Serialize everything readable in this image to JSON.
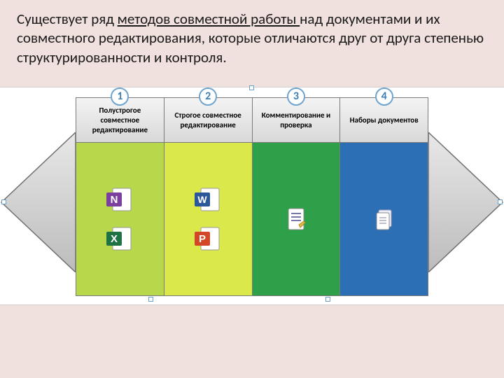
{
  "intro": {
    "pre": "Существует ряд ",
    "u": "методов совместной работы ",
    "post": "над документами и их совместного редактирования, которые отличаются друг от друга степенью структурированности и контроля."
  },
  "columns": [
    {
      "num": "1",
      "label": "Полустрогое совместное редактирование",
      "body_color": "#b6d84a",
      "icons": [
        "onenote",
        "excel"
      ]
    },
    {
      "num": "2",
      "label": "Строгое совместное редактирование",
      "body_color": "#dbe84a",
      "icons": [
        "word",
        "powerpoint"
      ]
    },
    {
      "num": "3",
      "label": "Комментирование и проверка",
      "body_color": "#2ea04a",
      "icons": [
        "doc-page"
      ]
    },
    {
      "num": "4",
      "label": "Наборы документов",
      "body_color": "#2d6fb5",
      "icons": [
        "doc-stack"
      ]
    }
  ],
  "arrow": {
    "fill_top": "#e8e8e8",
    "fill_bot": "#bcbcbc",
    "stroke": "#707070"
  },
  "handle_color": "#6aa0cc"
}
